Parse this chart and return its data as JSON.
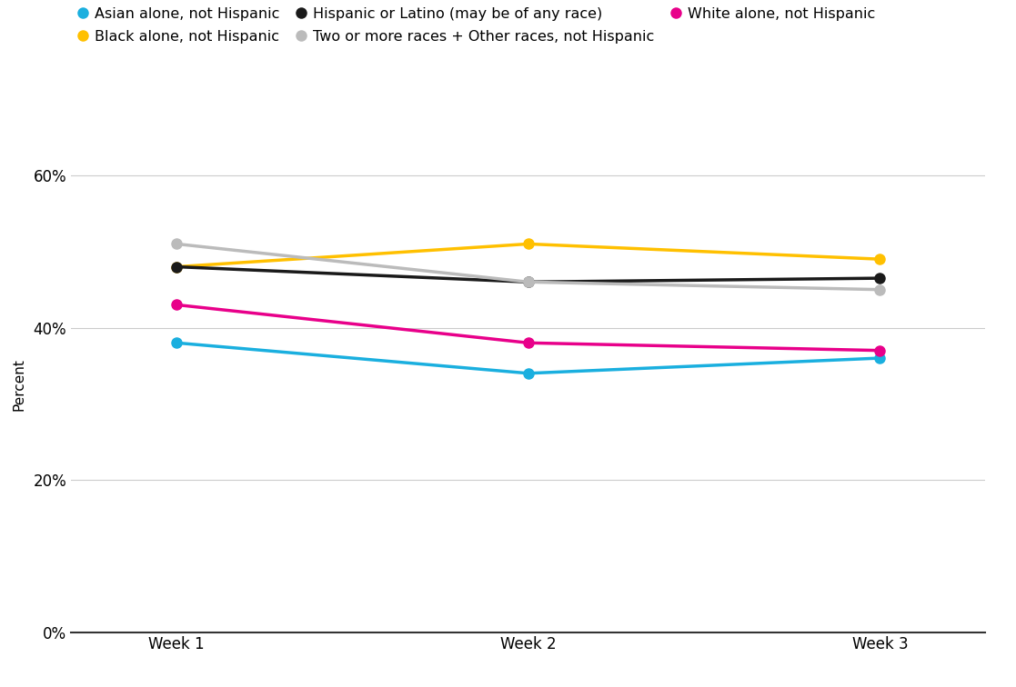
{
  "series": [
    {
      "label": "Asian alone, not Hispanic",
      "color": "#1AAFDF",
      "values": [
        38,
        34,
        36
      ]
    },
    {
      "label": "Black alone, not Hispanic",
      "color": "#FFC000",
      "values": [
        48,
        51,
        49
      ]
    },
    {
      "label": "Hispanic or Latino (may be of any race)",
      "color": "#1A1A1A",
      "values": [
        48,
        46,
        46.5
      ]
    },
    {
      "label": "Two or more races + Other races, not Hispanic",
      "color": "#BBBBBB",
      "values": [
        51,
        46,
        45
      ]
    },
    {
      "label": "White alone, not Hispanic",
      "color": "#E8008A",
      "values": [
        43,
        38,
        37
      ]
    }
  ],
  "x_labels": [
    "Week 1",
    "Week 2",
    "Week 3"
  ],
  "y_ticks": [
    0,
    20,
    40,
    60
  ],
  "y_tick_labels": [
    "0%",
    "20%",
    "40%",
    "60%"
  ],
  "ylim": [
    0,
    65
  ],
  "ylabel": "Percent",
  "background_color": "#FFFFFF",
  "line_width": 2.5,
  "marker_size": 8,
  "legend_fontsize": 11.5,
  "tick_fontsize": 12,
  "ylabel_fontsize": 11
}
